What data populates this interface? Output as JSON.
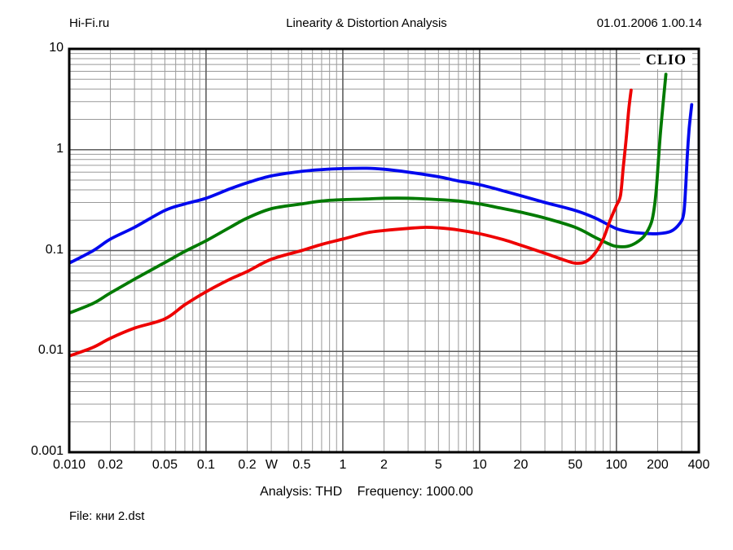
{
  "page": {
    "site": "Hi-Fi.ru",
    "title": "Linearity & Distortion Analysis",
    "datetime": "01.01.2006 1.00.14",
    "watermark": "CLIO",
    "caption": {
      "analysis": "Analysis: THD",
      "frequency": "Frequency: 1000.00"
    },
    "file_label": "File: кни 2.dst"
  },
  "chart_data": {
    "type": "line",
    "title": "Linearity & Distortion Analysis",
    "x_unit": "W",
    "x_scale": "log",
    "x_range": [
      0.01,
      400
    ],
    "x_tick_values": [
      0.01,
      0.02,
      0.05,
      0.1,
      0.2,
      0.5,
      1,
      2,
      5,
      10,
      20,
      50,
      100,
      200,
      400
    ],
    "x_tick_labels": [
      "0.010",
      "0.02",
      "0.05",
      "0.1",
      "0.2",
      "0.5",
      "1",
      "2",
      "5",
      "10",
      "20",
      "50",
      "100",
      "200",
      "400"
    ],
    "y_scale": "log",
    "y_range": [
      0.001,
      10
    ],
    "y_tick_values": [
      10,
      1,
      0.1,
      0.01,
      0.001
    ],
    "y_tick_labels": [
      "10",
      "1",
      "0.1",
      "0.01",
      "0.001"
    ],
    "grid": true,
    "legend": "none",
    "colors": {
      "grid_minor": "#9a9a9a",
      "grid_major": "#5f5f5f",
      "frame": "#000000"
    },
    "series": [
      {
        "name": "blue-curve",
        "color": "#0008ee",
        "points": [
          [
            0.01,
            0.075
          ],
          [
            0.015,
            0.1
          ],
          [
            0.02,
            0.13
          ],
          [
            0.03,
            0.17
          ],
          [
            0.05,
            0.25
          ],
          [
            0.07,
            0.29
          ],
          [
            0.1,
            0.33
          ],
          [
            0.15,
            0.41
          ],
          [
            0.2,
            0.47
          ],
          [
            0.3,
            0.55
          ],
          [
            0.5,
            0.61
          ],
          [
            0.7,
            0.635
          ],
          [
            1,
            0.65
          ],
          [
            1.5,
            0.655
          ],
          [
            2,
            0.64
          ],
          [
            3,
            0.6
          ],
          [
            5,
            0.54
          ],
          [
            7,
            0.49
          ],
          [
            10,
            0.45
          ],
          [
            15,
            0.39
          ],
          [
            20,
            0.35
          ],
          [
            30,
            0.3
          ],
          [
            50,
            0.25
          ],
          [
            70,
            0.21
          ],
          [
            100,
            0.165
          ],
          [
            130,
            0.152
          ],
          [
            160,
            0.148
          ],
          [
            200,
            0.147
          ],
          [
            250,
            0.155
          ],
          [
            290,
            0.185
          ],
          [
            310,
            0.23
          ],
          [
            320,
            0.4
          ],
          [
            330,
            0.9
          ],
          [
            340,
            1.6
          ],
          [
            355,
            2.8
          ]
        ]
      },
      {
        "name": "green-curve",
        "color": "#007a00",
        "points": [
          [
            0.01,
            0.024
          ],
          [
            0.015,
            0.03
          ],
          [
            0.02,
            0.038
          ],
          [
            0.03,
            0.052
          ],
          [
            0.05,
            0.076
          ],
          [
            0.07,
            0.098
          ],
          [
            0.1,
            0.125
          ],
          [
            0.15,
            0.17
          ],
          [
            0.2,
            0.21
          ],
          [
            0.3,
            0.26
          ],
          [
            0.5,
            0.29
          ],
          [
            0.7,
            0.31
          ],
          [
            1,
            0.32
          ],
          [
            1.5,
            0.325
          ],
          [
            2,
            0.33
          ],
          [
            3,
            0.33
          ],
          [
            5,
            0.32
          ],
          [
            7,
            0.31
          ],
          [
            10,
            0.29
          ],
          [
            15,
            0.26
          ],
          [
            20,
            0.24
          ],
          [
            30,
            0.21
          ],
          [
            50,
            0.17
          ],
          [
            70,
            0.135
          ],
          [
            90,
            0.115
          ],
          [
            100,
            0.11
          ],
          [
            120,
            0.11
          ],
          [
            140,
            0.12
          ],
          [
            160,
            0.14
          ],
          [
            180,
            0.19
          ],
          [
            190,
            0.28
          ],
          [
            197,
            0.45
          ],
          [
            203,
            0.8
          ],
          [
            210,
            1.5
          ],
          [
            220,
            3.0
          ],
          [
            230,
            5.6
          ]
        ]
      },
      {
        "name": "red-curve",
        "color": "#ee0000",
        "points": [
          [
            0.01,
            0.009
          ],
          [
            0.015,
            0.011
          ],
          [
            0.02,
            0.0135
          ],
          [
            0.03,
            0.017
          ],
          [
            0.05,
            0.021
          ],
          [
            0.07,
            0.029
          ],
          [
            0.1,
            0.039
          ],
          [
            0.15,
            0.052
          ],
          [
            0.2,
            0.062
          ],
          [
            0.3,
            0.082
          ],
          [
            0.5,
            0.1
          ],
          [
            0.7,
            0.115
          ],
          [
            1,
            0.13
          ],
          [
            1.5,
            0.15
          ],
          [
            2,
            0.158
          ],
          [
            3,
            0.166
          ],
          [
            4,
            0.17
          ],
          [
            5,
            0.168
          ],
          [
            7,
            0.16
          ],
          [
            10,
            0.147
          ],
          [
            15,
            0.128
          ],
          [
            20,
            0.113
          ],
          [
            30,
            0.094
          ],
          [
            40,
            0.082
          ],
          [
            50,
            0.075
          ],
          [
            60,
            0.078
          ],
          [
            70,
            0.095
          ],
          [
            80,
            0.13
          ],
          [
            90,
            0.2
          ],
          [
            100,
            0.28
          ],
          [
            107,
            0.35
          ],
          [
            112,
            0.65
          ],
          [
            118,
            1.3
          ],
          [
            123,
            2.5
          ],
          [
            128,
            3.9
          ]
        ]
      }
    ]
  }
}
